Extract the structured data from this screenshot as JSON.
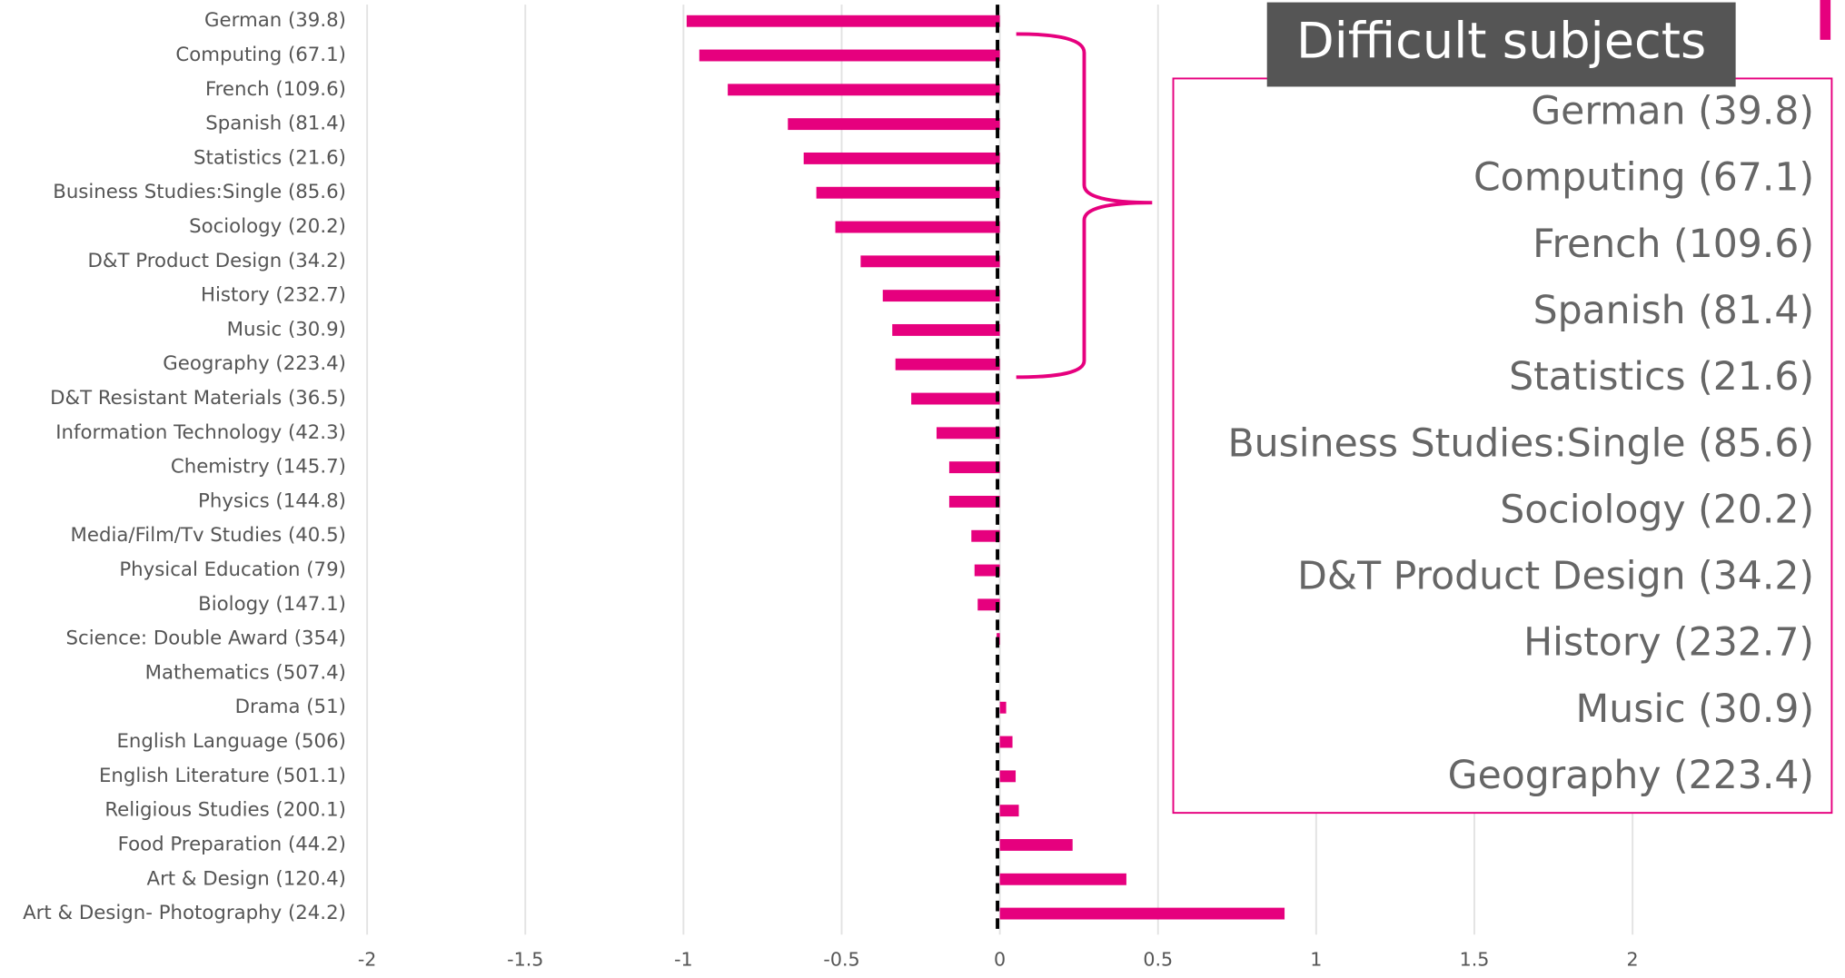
{
  "chart_data": {
    "type": "bar",
    "orientation": "horizontal",
    "categories": [
      "German (39.8)",
      "Computing (67.1)",
      "French (109.6)",
      "Spanish (81.4)",
      "Statistics (21.6)",
      "Business Studies:Single (85.6)",
      "Sociology (20.2)",
      "D&T Product Design (34.2)",
      "History (232.7)",
      "Music (30.9)",
      "Geography (223.4)",
      "D&T Resistant Materials (36.5)",
      "Information Technology (42.3)",
      "Chemistry (145.7)",
      "Physics (144.8)",
      "Media/Film/Tv Studies (40.5)",
      "Physical Education (79)",
      "Biology (147.1)",
      "Science: Double Award (354)",
      "Mathematics (507.4)",
      "Drama (51)",
      "English Language (506)",
      "English Literature (501.1)",
      "Religious Studies (200.1)",
      "Food Preparation (44.2)",
      "Art & Design (120.4)",
      "Art & Design- Photography (24.2)"
    ],
    "values": [
      -0.99,
      -0.95,
      -0.86,
      -0.67,
      -0.62,
      -0.58,
      -0.52,
      -0.44,
      -0.37,
      -0.34,
      -0.33,
      -0.28,
      -0.2,
      -0.16,
      -0.16,
      -0.09,
      -0.08,
      -0.07,
      -0.01,
      0,
      0.02,
      0.04,
      0.05,
      0.06,
      0.23,
      0.4,
      0.9
    ],
    "color": "#e6007e",
    "xlim": [
      -2,
      2.5
    ],
    "xticks": [
      -2,
      -1.5,
      -1,
      -0.5,
      0,
      0.5,
      1,
      1.5,
      2
    ],
    "grid": true,
    "callout": {
      "title": "Difficult subjects",
      "items": [
        "German (39.8)",
        "Computing (67.1)",
        "French (109.6)",
        "Spanish (81.4)",
        "Statistics (21.6)",
        "Business Studies:Single (85.6)",
        "Sociology (20.2)",
        "D&T Product Design (34.2)",
        "History (232.7)",
        "Music (30.9)",
        "Geography (223.4)"
      ]
    }
  }
}
